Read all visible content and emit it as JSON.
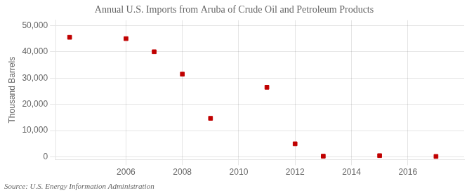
{
  "chart_data": {
    "type": "scatter",
    "title": "Annual U.S. Imports from Aruba of Crude Oil and Petroleum Products",
    "ylabel": "Thousand Barrels",
    "annotations": [
      "Source: U.S. Energy Information Administration"
    ],
    "x": [
      2004,
      2006,
      2007,
      2008,
      2009,
      2011,
      2012,
      2013,
      2015,
      2017
    ],
    "values": [
      45500,
      45000,
      40000,
      31500,
      14700,
      26500,
      5000,
      300,
      500,
      200
    ],
    "color": "#c00000",
    "marker": "square",
    "xlim": [
      2003.5,
      2018
    ],
    "ylim": [
      -1000,
      52000
    ],
    "xticks": [
      2006,
      2008,
      2010,
      2012,
      2014,
      2016
    ],
    "yticks": [
      0,
      {
        "value": 10000,
        "label": "10,000"
      },
      {
        "value": 20000,
        "label": "20,000"
      },
      {
        "value": 30000,
        "label": "30,000"
      },
      {
        "value": 40000,
        "label": "40,000"
      },
      {
        "value": 50000,
        "label": "50,000"
      }
    ],
    "grid": true
  }
}
